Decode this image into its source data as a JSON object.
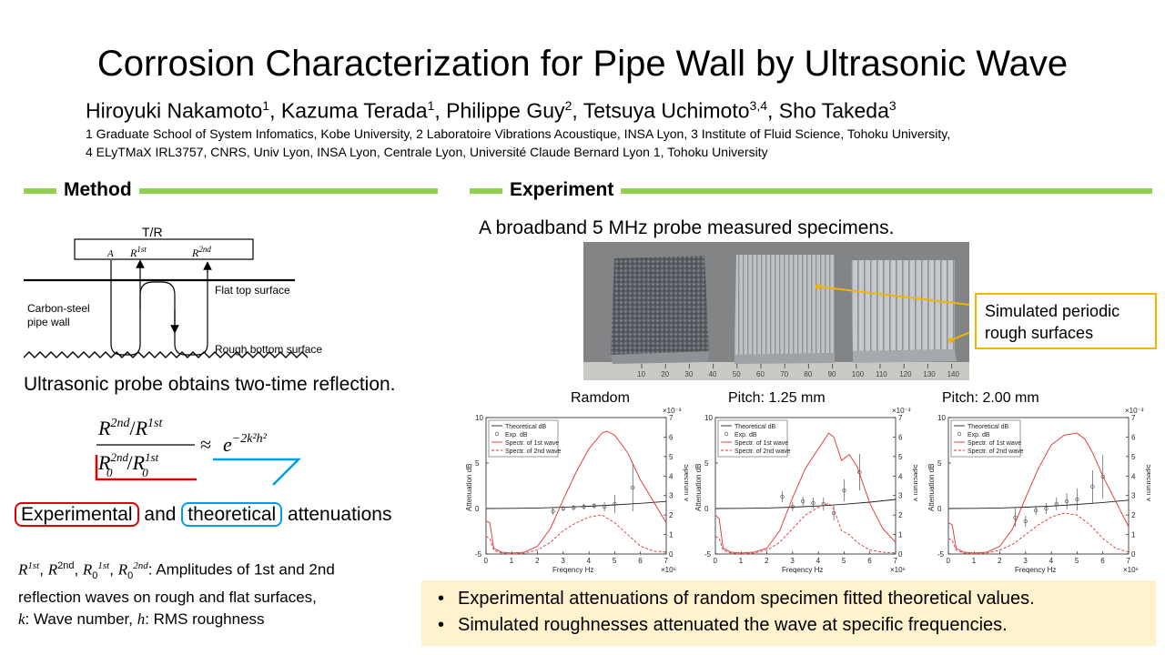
{
  "title": "Corrosion Characterization for Pipe Wall by Ultrasonic Wave",
  "authors": [
    {
      "name": "Hiroyuki Nakamoto",
      "sup": "1",
      "sep": ", "
    },
    {
      "name": "Kazuma Terada",
      "sup": "1",
      "sep": ", "
    },
    {
      "name": "Philippe Guy",
      "sup": "2",
      "sep": ", "
    },
    {
      "name": "Tetsuya Uchimoto",
      "sup": "3,4",
      "sep": ", "
    },
    {
      "name": "Sho Takeda",
      "sup": "3",
      "sep": ""
    }
  ],
  "affiliations": {
    "line1": "1 Graduate School of System Infomatics, Kobe University, 2 Laboratoire Vibrations Acoustique, INSA Lyon, 3 Institute of Fluid Science, Tohoku University,",
    "line2": "4 ELyTMaX IRL3757, CNRS, Univ Lyon, INSA Lyon, Centrale Lyon, Université Claude Bernard Lyon 1, Tohoku University"
  },
  "method": {
    "heading": "Method",
    "diagram": {
      "tr_label": "T/R",
      "a_label": "A",
      "r1_label": "R",
      "r1_sup": "1st",
      "r2_label": "R",
      "r2_sup": "2nd",
      "wall_label_1": "Carbon-steel",
      "wall_label_2": "pipe wall",
      "top_surface": "Flat top surface",
      "bottom_surface": "Rough bottom surface"
    },
    "probe_text": "Ultrasonic probe obtains two-time reflection.",
    "formula": {
      "numerator": "R",
      "sup_2nd": "2nd",
      "sup_1st": "1st",
      "sub_0": "0",
      "approx": "≈",
      "exp_base": "e",
      "exp_power": "−2k²h²"
    },
    "atten_experimental": "Experimental",
    "atten_and": "and",
    "atten_theoretical": "theoretical",
    "atten_suffix": "attenuations",
    "legend_line1_tail": ": Amplitudes of 1st and 2nd",
    "legend_line2": "reflection waves on rough and flat surfaces,",
    "legend_k": "k",
    "legend_k_text": ": Wave number, ",
    "legend_h": "h",
    "legend_h_text": ": RMS roughness",
    "legend_nd": "nd",
    "legend_st": "st"
  },
  "experiment": {
    "heading": "Experiment",
    "intro": "A broadband 5 MHz probe measured specimens.",
    "callout": "Simulated periodic rough surfaces",
    "ruler_ticks": [
      "10",
      "20",
      "30",
      "40",
      "50",
      "60",
      "70",
      "80",
      "90",
      "100",
      "110",
      "120",
      "130",
      "140"
    ],
    "chart_titles": [
      "Ramdom",
      "Pitch: 1.25 mm",
      "Pitch: 2.00 mm"
    ]
  },
  "summary": [
    "Experimental attenuations of random specimen fitted theoretical values.",
    "Simulated roughnesses attenuated the wave at specific frequencies."
  ],
  "colors": {
    "section_bar": "#92d050",
    "red_box": "#e00000",
    "blue_box": "#00a0e0",
    "callout_border": "#f2b400",
    "summary_bg": "#fff2cc",
    "spectrum": "#e03030"
  },
  "chart_data": [
    {
      "type": "line",
      "title": "Ramdom",
      "xlabel": "Freqency Hz",
      "ylabel": "Attenuation dB",
      "y2label": "Spectrum V",
      "x_multiplier": "×10⁶",
      "y2_multiplier": "×10⁻³",
      "xlim": [
        0,
        7
      ],
      "ylim": [
        -5,
        10
      ],
      "y2lim": [
        0,
        7
      ],
      "legend": [
        "Theoretical dB",
        "Exp. dB",
        "Spectr. of 1st wave",
        "Spectr. of 2nd wave"
      ],
      "legend_position": "top-left",
      "x_ticks": [
        "0",
        "1",
        "2",
        "3",
        "4",
        "5",
        "6",
        "7"
      ],
      "y_ticks": [
        "-5",
        "0",
        "5",
        "10"
      ],
      "y2_ticks": [
        "0",
        "1",
        "2",
        "3",
        "4",
        "5",
        "6",
        "7"
      ],
      "series": [
        {
          "name": "Theoretical dB",
          "axis": "left",
          "x": [
            0,
            1,
            2,
            3,
            4,
            5,
            6,
            7
          ],
          "y": [
            0,
            0.02,
            0.06,
            0.14,
            0.25,
            0.4,
            0.57,
            0.78
          ]
        },
        {
          "name": "Exp. dB",
          "axis": "left",
          "x": [
            2.6,
            3.0,
            3.4,
            3.8,
            4.2,
            4.6,
            5.0,
            5.7
          ],
          "y": [
            -0.3,
            0,
            0.1,
            0.2,
            0.3,
            0.2,
            0.5,
            2.3
          ],
          "err": [
            0.4,
            0.3,
            0.3,
            0.3,
            0.3,
            0.5,
            1.0,
            2.6
          ]
        },
        {
          "name": "Spectr. of 1st wave",
          "axis": "right",
          "x": [
            0,
            0.15,
            0.3,
            0.6,
            1,
            1.5,
            2,
            2.5,
            3,
            3.5,
            4,
            4.5,
            4.7,
            5,
            5.5,
            6,
            6.5,
            7
          ],
          "y": [
            1.7,
            1.6,
            0.3,
            0.1,
            0.05,
            0.1,
            0.4,
            1.3,
            2.8,
            4.2,
            5.4,
            6.2,
            6.3,
            6.1,
            5.2,
            3.8,
            2.7,
            1.6
          ]
        },
        {
          "name": "Spectr. of 2nd wave",
          "axis": "right",
          "x": [
            0,
            0.15,
            0.3,
            0.6,
            1,
            1.5,
            2,
            2.5,
            3,
            3.5,
            4,
            4.5,
            5,
            5.5,
            6,
            6.5,
            7
          ],
          "y": [
            0.9,
            0.8,
            0.2,
            0.05,
            0,
            0.05,
            0.2,
            0.6,
            1.2,
            1.6,
            1.9,
            2.0,
            1.6,
            1.0,
            0.4,
            0.15,
            0.1
          ]
        }
      ]
    },
    {
      "type": "line",
      "title": "Pitch: 1.25 mm",
      "xlabel": "Freqency Hz",
      "ylabel": "Attenuation dB",
      "y2label": "Spectrum V",
      "x_multiplier": "×10⁶",
      "y2_multiplier": "×10⁻³",
      "xlim": [
        0,
        7
      ],
      "ylim": [
        -5,
        10
      ],
      "y2lim": [
        0,
        7
      ],
      "legend": [
        "Theoretical dB",
        "Exp. dB",
        "Spectr. of 1st wave",
        "Spectr. of 2nd wave"
      ],
      "legend_position": "top-left",
      "x_ticks": [
        "0",
        "1",
        "2",
        "3",
        "4",
        "5",
        "6",
        "7"
      ],
      "y_ticks": [
        "-5",
        "0",
        "5",
        "10"
      ],
      "y2_ticks": [
        "0",
        "1",
        "2",
        "3",
        "4",
        "5",
        "6",
        "7"
      ],
      "series": [
        {
          "name": "Theoretical dB",
          "axis": "left",
          "x": [
            0,
            1,
            2,
            3,
            4,
            5,
            6,
            7
          ],
          "y": [
            0,
            0.02,
            0.06,
            0.15,
            0.28,
            0.47,
            0.7,
            1.0
          ]
        },
        {
          "name": "Exp. dB",
          "axis": "left",
          "x": [
            2.6,
            3.0,
            3.4,
            3.8,
            4.2,
            4.6,
            5.0,
            5.6
          ],
          "y": [
            1.3,
            0.2,
            0.8,
            0.6,
            0.5,
            -0.5,
            2.0,
            4.0
          ],
          "err": [
            0.6,
            0.5,
            0.5,
            0.6,
            0.7,
            0.8,
            1.2,
            2.0
          ]
        },
        {
          "name": "Spectr. of 1st wave",
          "axis": "right",
          "x": [
            0,
            0.15,
            0.3,
            0.6,
            1,
            1.5,
            2,
            2.5,
            3,
            3.5,
            4,
            4.4,
            4.6,
            4.9,
            5.2,
            5.5,
            6,
            6.5,
            7
          ],
          "y": [
            2.0,
            1.8,
            0.3,
            0.1,
            0.05,
            0.1,
            0.3,
            1.2,
            2.9,
            4.4,
            5.4,
            6.2,
            6.0,
            4.8,
            5.1,
            4.5,
            2.6,
            1.3,
            0.6
          ]
        },
        {
          "name": "Spectr. of 2nd wave",
          "axis": "right",
          "x": [
            0,
            0.15,
            0.3,
            0.6,
            1,
            1.5,
            2,
            2.5,
            3,
            3.5,
            4,
            4.4,
            4.6,
            4.9,
            5.2,
            5.5,
            6,
            6.5,
            7
          ],
          "y": [
            0.9,
            0.8,
            0.2,
            0.05,
            0,
            0.05,
            0.2,
            0.6,
            1.3,
            2.0,
            2.4,
            2.6,
            2.3,
            1.2,
            1.0,
            0.6,
            0.2,
            0.1,
            0.05
          ]
        }
      ]
    },
    {
      "type": "line",
      "title": "Pitch: 2.00 mm",
      "xlabel": "Freqency Hz",
      "ylabel": "Attenuation dB",
      "y2label": "Spectrum V",
      "x_multiplier": "×10⁶",
      "y2_multiplier": "×10⁻³",
      "xlim": [
        0,
        7
      ],
      "ylim": [
        -5,
        10
      ],
      "y2lim": [
        0,
        7
      ],
      "legend": [
        "Theoretical dB",
        "Exp. dB",
        "Spectr. of 1st wave",
        "Spectr. of 2nd wave"
      ],
      "legend_position": "top-left",
      "x_ticks": [
        "0",
        "1",
        "2",
        "3",
        "4",
        "5",
        "6",
        "7"
      ],
      "y_ticks": [
        "-5",
        "0",
        "5",
        "10"
      ],
      "y2_ticks": [
        "0",
        "1",
        "2",
        "3",
        "4",
        "5",
        "6",
        "7"
      ],
      "series": [
        {
          "name": "Theoretical dB",
          "axis": "left",
          "x": [
            0,
            1,
            2,
            3,
            4,
            5,
            6,
            7
          ],
          "y": [
            0,
            0.02,
            0.06,
            0.15,
            0.27,
            0.45,
            0.66,
            0.92
          ]
        },
        {
          "name": "Exp. dB",
          "axis": "left",
          "x": [
            2.6,
            3.0,
            3.4,
            3.8,
            4.2,
            4.6,
            5.0,
            5.6,
            6.0
          ],
          "y": [
            -1.0,
            -1.4,
            -0.2,
            0,
            0.5,
            0.8,
            1.0,
            2.4,
            3.5
          ],
          "err": [
            1.0,
            0.6,
            0.5,
            0.6,
            0.7,
            0.9,
            1.2,
            1.8,
            2.4
          ]
        },
        {
          "name": "Spectr. of 1st wave",
          "axis": "right",
          "x": [
            0,
            0.15,
            0.3,
            0.6,
            1,
            1.5,
            2,
            2.5,
            3,
            3.5,
            4,
            4.5,
            5,
            5.3,
            5.6,
            6,
            6.5,
            7
          ],
          "y": [
            1.6,
            1.5,
            0.3,
            0.1,
            0.05,
            0.1,
            0.4,
            1.3,
            2.9,
            4.4,
            5.6,
            6.1,
            6.2,
            5.9,
            5.2,
            4.0,
            2.7,
            1.4
          ]
        },
        {
          "name": "Spectr. of 2nd wave",
          "axis": "right",
          "x": [
            0,
            0.15,
            0.3,
            0.6,
            1,
            1.5,
            2,
            2.5,
            3,
            3.5,
            4,
            4.5,
            5,
            5.5,
            6,
            6.5,
            7
          ],
          "y": [
            0.8,
            0.7,
            0.2,
            0.05,
            0,
            0.05,
            0.2,
            0.5,
            1.0,
            1.5,
            1.9,
            2.1,
            2.0,
            1.5,
            0.8,
            0.3,
            0.1
          ]
        }
      ]
    }
  ]
}
